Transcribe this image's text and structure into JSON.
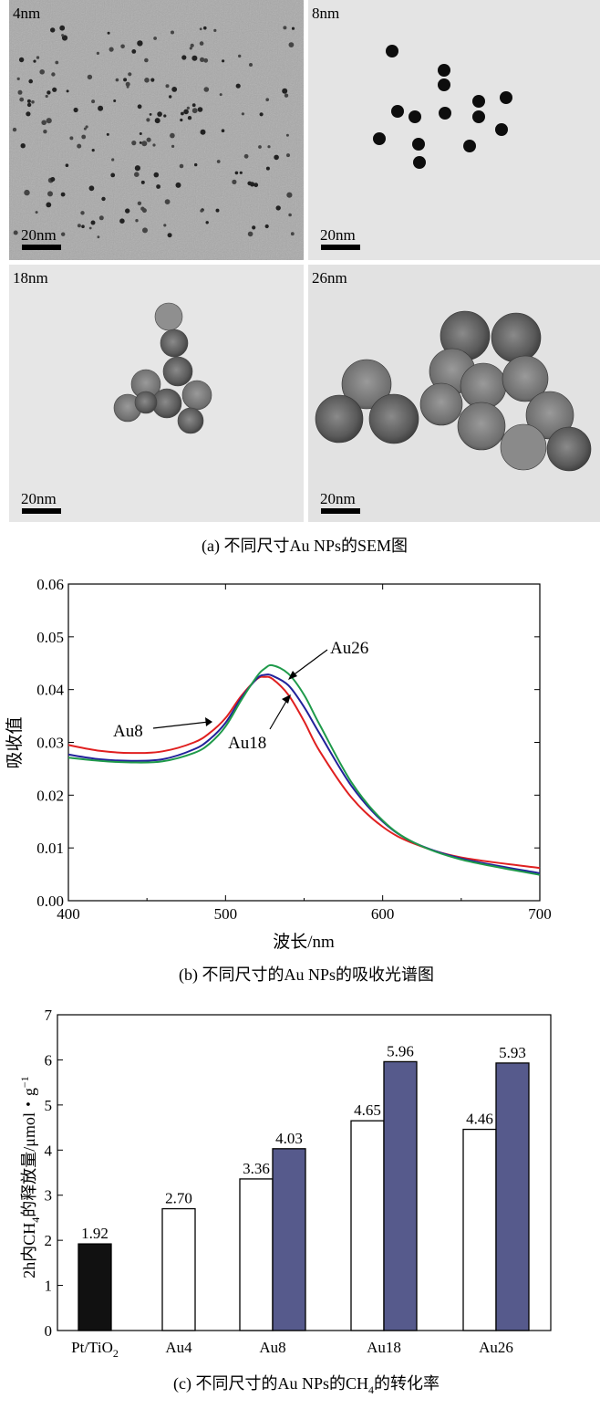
{
  "panel_a": {
    "caption": "(a) 不同尺寸Au NPs的SEM图",
    "images": [
      {
        "size_label": "4nm",
        "scale_label": "20nm"
      },
      {
        "size_label": "8nm",
        "scale_label": "20nm"
      },
      {
        "size_label": "18nm",
        "scale_label": "20nm"
      },
      {
        "size_label": "26nm",
        "scale_label": "20nm"
      }
    ]
  },
  "chart_data": [
    {
      "type": "line",
      "caption": "(b) 不同尺寸的Au NPs的吸收光谱图",
      "xlabel": "波长/nm",
      "ylabel": "吸收值",
      "xlim": [
        400,
        700
      ],
      "ylim": [
        0,
        0.06
      ],
      "x_ticks": [
        "400",
        "500",
        "600",
        "700"
      ],
      "y_ticks": [
        "0.00",
        "0.01",
        "0.02",
        "0.03",
        "0.04",
        "0.05",
        "0.06"
      ],
      "x": [
        400,
        420,
        440,
        460,
        480,
        490,
        500,
        510,
        520,
        525,
        530,
        540,
        550,
        560,
        580,
        600,
        620,
        650,
        700
      ],
      "series": [
        {
          "name": "Au8",
          "color": "#e02020",
          "values": [
            0.0295,
            0.0284,
            0.028,
            0.0283,
            0.03,
            0.0318,
            0.0346,
            0.0388,
            0.042,
            0.0424,
            0.042,
            0.039,
            0.034,
            0.0283,
            0.0196,
            0.014,
            0.0108,
            0.0082,
            0.0062
          ]
        },
        {
          "name": "Au18",
          "color": "#22229a",
          "values": [
            0.0277,
            0.0268,
            0.0265,
            0.0268,
            0.0287,
            0.0306,
            0.0337,
            0.0384,
            0.0421,
            0.0428,
            0.0426,
            0.0408,
            0.0367,
            0.0316,
            0.0218,
            0.015,
            0.011,
            0.008,
            0.0052
          ]
        },
        {
          "name": "Au26",
          "color": "#1f9a4a",
          "values": [
            0.0271,
            0.0265,
            0.0262,
            0.0264,
            0.028,
            0.0298,
            0.033,
            0.038,
            0.0425,
            0.044,
            0.0446,
            0.043,
            0.039,
            0.0333,
            0.0225,
            0.0152,
            0.011,
            0.0078,
            0.0049
          ]
        }
      ],
      "annotations": [
        "Au26",
        "Au8",
        "Au18"
      ]
    },
    {
      "type": "bar",
      "caption": "(c) 不同尺寸的Au NPs的CH4的转化率",
      "ylabel": "2h内CH4的释放量/μmol・g−1",
      "ylim": [
        0,
        7
      ],
      "y_ticks": [
        "0",
        "1",
        "2",
        "3",
        "4",
        "5",
        "6",
        "7"
      ],
      "categories": [
        "Pt/TiO2",
        "Au4",
        "Au8",
        "Au18",
        "Au26"
      ],
      "series": [
        {
          "fill": "#111111",
          "values": [
            1.92,
            null,
            null,
            null,
            null
          ],
          "labels": [
            "1.92",
            "",
            "",
            "",
            ""
          ]
        },
        {
          "fill": "#ffffff",
          "values": [
            null,
            2.7,
            3.36,
            4.65,
            4.46
          ],
          "labels": [
            "",
            "2.70",
            "3.36",
            "4.65",
            "4.46"
          ]
        },
        {
          "fill": "#565a8c",
          "values": [
            null,
            null,
            4.03,
            5.96,
            5.93
          ],
          "labels": [
            "",
            "",
            "4.03",
            "5.96",
            "5.93"
          ]
        }
      ]
    }
  ]
}
